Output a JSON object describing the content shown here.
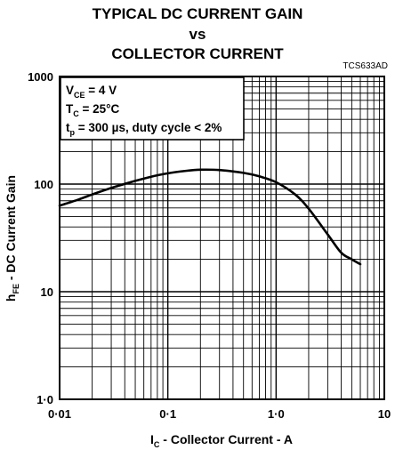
{
  "title": {
    "line1": "TYPICAL DC CURRENT GAIN",
    "line2": "vs",
    "line3": "COLLECTOR CURRENT"
  },
  "figure_code": "TCS633AD",
  "conditions": {
    "vce_main": "V",
    "vce_sub": "CE",
    "vce_value": " = 4 V",
    "tc_main": "T",
    "tc_sub": "C",
    "tc_value": " = 25°C",
    "tp_main": "t",
    "tp_sub": "p",
    "tp_value": " = 300 µs, duty cycle < 2%"
  },
  "axes": {
    "x_label_main": "I",
    "x_label_sub": "C",
    "x_label_rest": " - Collector Current - A",
    "y_label_main": "h",
    "y_label_sub": "FE",
    "y_label_rest": " - DC Current Gain"
  },
  "chart_data": {
    "type": "line",
    "title": "TYPICAL DC CURRENT GAIN vs COLLECTOR CURRENT",
    "xscale": "log",
    "yscale": "log",
    "xlim": [
      0.01,
      10
    ],
    "ylim": [
      1,
      1000
    ],
    "grid": true,
    "x_ticks": [
      {
        "value": 0.01,
        "label": "0·01"
      },
      {
        "value": 0.1,
        "label": "0·1"
      },
      {
        "value": 1,
        "label": "1·0"
      },
      {
        "value": 10,
        "label": "10"
      }
    ],
    "y_ticks": [
      {
        "value": 1,
        "label": "1·0"
      },
      {
        "value": 10,
        "label": "10"
      },
      {
        "value": 100,
        "label": "100"
      },
      {
        "value": 1000,
        "label": "1000"
      }
    ],
    "series": [
      {
        "x": [
          0.01,
          0.015,
          0.02,
          0.03,
          0.05,
          0.07,
          0.1,
          0.15,
          0.2,
          0.3,
          0.5,
          0.7,
          1.0,
          1.5,
          2.0,
          3.0,
          4.0,
          5.0,
          6.0
        ],
        "y": [
          63,
          72,
          80,
          92,
          107,
          117,
          126,
          133,
          136,
          135,
          127,
          118,
          104,
          80,
          59,
          34,
          23,
          20,
          18
        ]
      }
    ]
  }
}
